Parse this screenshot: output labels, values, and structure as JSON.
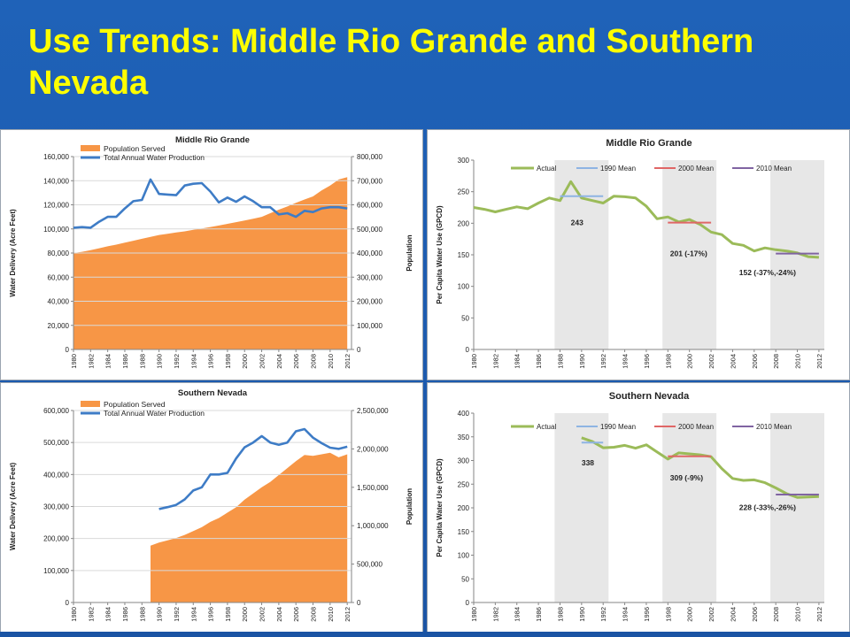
{
  "title": "Use Trends:  Middle Rio Grande and Southern Nevada",
  "colors": {
    "population": "#f79646",
    "production": "#3e7cc6",
    "actual": "#9bbb59",
    "mean1990": "#8eb4e3",
    "mean2000": "#e06666",
    "mean2010": "#8064a2",
    "shade": "#e7e7e7"
  },
  "chart_data": [
    {
      "id": "mrg-delivery",
      "type": "area",
      "title": "Middle Rio Grande",
      "ylabel": "Water Delivery  (Acre Feet)",
      "y2label": "Population",
      "ylim": [
        0,
        160000
      ],
      "y2lim": [
        0,
        800000
      ],
      "yticks": [
        "0",
        "20,000",
        "40,000",
        "60,000",
        "80,000",
        "100,000",
        "120,000",
        "140,000",
        "160,000"
      ],
      "y2ticks": [
        "0",
        "100,000",
        "200,000",
        "300,000",
        "400,000",
        "500,000",
        "600,000",
        "700,000",
        "800,000"
      ],
      "xticks": [
        "1980",
        "1982",
        "1984",
        "1986",
        "1988",
        "1990",
        "1992",
        "1994",
        "1996",
        "1998",
        "2000",
        "2002",
        "2004",
        "2006",
        "2008",
        "2010",
        "2012"
      ],
      "legend_position": "top-left",
      "series": [
        {
          "name": "Population Served",
          "kind": "area",
          "axis": "right",
          "x": [
            1980,
            1981,
            1982,
            1983,
            1984,
            1985,
            1986,
            1987,
            1988,
            1989,
            1990,
            1991,
            1992,
            1993,
            1994,
            1995,
            1996,
            1997,
            1998,
            1999,
            2000,
            2001,
            2002,
            2003,
            2004,
            2005,
            2006,
            2007,
            2008,
            2009,
            2010,
            2011,
            2012
          ],
          "values": [
            400000,
            405000,
            412000,
            420000,
            428000,
            435000,
            443000,
            451000,
            459000,
            467000,
            475000,
            480000,
            485000,
            490000,
            496000,
            502000,
            508000,
            514000,
            521000,
            528000,
            535000,
            542000,
            550000,
            565000,
            580000,
            593000,
            608000,
            622000,
            635000,
            660000,
            680000,
            705000,
            715000
          ]
        },
        {
          "name": "Total Annual Water Production",
          "kind": "line",
          "axis": "left",
          "x": [
            1980,
            1981,
            1982,
            1983,
            1984,
            1985,
            1986,
            1987,
            1988,
            1989,
            1990,
            1991,
            1992,
            1993,
            1994,
            1995,
            1996,
            1997,
            1998,
            1999,
            2000,
            2001,
            2002,
            2003,
            2004,
            2005,
            2006,
            2007,
            2008,
            2009,
            2010,
            2011,
            2012
          ],
          "values": [
            101000,
            101500,
            101000,
            106000,
            110000,
            110000,
            117000,
            123000,
            124000,
            141000,
            129000,
            128500,
            128000,
            136000,
            137500,
            138000,
            131000,
            122000,
            126000,
            122500,
            127000,
            123000,
            118000,
            118000,
            112000,
            113000,
            110000,
            115000,
            114000,
            117000,
            118000,
            118000,
            117000
          ]
        }
      ]
    },
    {
      "id": "mrg-gpcd",
      "type": "line",
      "title": "Middle Rio Grande",
      "ylabel": "Per Capita Water Use (GPCD)",
      "ylim": [
        0,
        300
      ],
      "yticks": [
        "0",
        "50",
        "100",
        "150",
        "200",
        "250",
        "300"
      ],
      "xticks": [
        "1980",
        "1982",
        "1984",
        "1986",
        "1988",
        "1990",
        "1992",
        "1994",
        "1996",
        "1998",
        "2000",
        "2002",
        "2004",
        "2006",
        "2008",
        "2010",
        "2012"
      ],
      "legend_position": "top",
      "series": [
        {
          "name": "Actual",
          "x": [
            1980,
            1981,
            1982,
            1983,
            1984,
            1985,
            1986,
            1987,
            1988,
            1989,
            1990,
            1991,
            1992,
            1993,
            1994,
            1995,
            1996,
            1997,
            1998,
            1999,
            2000,
            2001,
            2002,
            2003,
            2004,
            2005,
            2006,
            2007,
            2008,
            2009,
            2010,
            2011,
            2012
          ],
          "values": [
            225,
            222,
            218,
            222,
            226,
            223,
            232,
            240,
            236,
            266,
            240,
            236,
            232,
            243,
            242,
            240,
            227,
            207,
            210,
            202,
            206,
            198,
            186,
            182,
            168,
            165,
            156,
            161,
            158,
            156,
            153,
            147,
            146
          ]
        },
        {
          "name": "1990 Mean",
          "x": [
            1988,
            1992
          ],
          "values": [
            243,
            243
          ]
        },
        {
          "name": "2000 Mean",
          "x": [
            1998,
            2002
          ],
          "values": [
            201,
            201
          ]
        },
        {
          "name": "2010 Mean",
          "x": [
            2008,
            2012
          ],
          "values": [
            152,
            152
          ]
        }
      ],
      "shaded_ranges": [
        [
          1987.5,
          1992.5
        ],
        [
          1997.5,
          2002.5
        ],
        [
          2007.5,
          2012.5
        ]
      ],
      "annotations": [
        {
          "text": "243",
          "x": 1989,
          "y": 197
        },
        {
          "text": "201 (-17%)",
          "x": 1998.2,
          "y": 148
        },
        {
          "text": "152 (-37%,-24%)",
          "x": 2004.6,
          "y": 118
        }
      ]
    },
    {
      "id": "sn-delivery",
      "type": "area",
      "title": "Southern Nevada",
      "ylabel": "Water Delivery (Acre Feet)",
      "y2label": "Population",
      "ylim": [
        0,
        600000
      ],
      "y2lim": [
        0,
        2500000
      ],
      "yticks": [
        "0",
        "100,000",
        "200,000",
        "300,000",
        "400,000",
        "500,000",
        "600,000"
      ],
      "y2ticks": [
        "0",
        "500,000",
        "1,000,000",
        "1,500,000",
        "2,000,000",
        "2,500,000"
      ],
      "xticks": [
        "1980",
        "1982",
        "1984",
        "1986",
        "1988",
        "1990",
        "1992",
        "1994",
        "1996",
        "1998",
        "2000",
        "2002",
        "2004",
        "2006",
        "2008",
        "2010",
        "2012"
      ],
      "legend_position": "top-left",
      "series": [
        {
          "name": "Population Served",
          "kind": "area",
          "axis": "right",
          "x": [
            1989,
            1989,
            1990,
            1991,
            1992,
            1993,
            1994,
            1995,
            1996,
            1997,
            1998,
            1999,
            2000,
            2001,
            2002,
            2003,
            2004,
            2005,
            2006,
            2007,
            2008,
            2009,
            2010,
            2011,
            2012
          ],
          "values": [
            0,
            740000,
            780000,
            810000,
            840000,
            880000,
            930000,
            980000,
            1050000,
            1100000,
            1170000,
            1240000,
            1340000,
            1420000,
            1500000,
            1570000,
            1660000,
            1750000,
            1840000,
            1920000,
            1910000,
            1930000,
            1950000,
            1890000,
            1930000
          ]
        },
        {
          "name": "Total Annual Water Production",
          "kind": "line",
          "axis": "left",
          "x": [
            1990,
            1991,
            1992,
            1993,
            1994,
            1995,
            1996,
            1997,
            1998,
            1999,
            2000,
            2001,
            2002,
            2003,
            2004,
            2005,
            2006,
            2007,
            2008,
            2009,
            2010,
            2011,
            2012
          ],
          "values": [
            292000,
            298000,
            305000,
            322000,
            350000,
            360000,
            400000,
            400000,
            405000,
            450000,
            485000,
            500000,
            520000,
            500000,
            493000,
            500000,
            535000,
            542000,
            515000,
            498000,
            484000,
            480000,
            487000
          ]
        }
      ]
    },
    {
      "id": "sn-gpcd",
      "type": "line",
      "title": "Southern Nevada",
      "ylabel": "Per Capita Water Use (GPCD)",
      "ylim": [
        0,
        400
      ],
      "yticks": [
        "0",
        "50",
        "100",
        "150",
        "200",
        "250",
        "300",
        "350",
        "400"
      ],
      "xticks": [
        "1980",
        "1982",
        "1984",
        "1986",
        "1988",
        "1990",
        "1992",
        "1994",
        "1996",
        "1998",
        "2000",
        "2002",
        "2004",
        "2006",
        "2008",
        "2010",
        "2012"
      ],
      "legend_position": "top",
      "series": [
        {
          "name": "Actual",
          "x": [
            1990,
            1991,
            1992,
            1993,
            1994,
            1995,
            1996,
            1997,
            1998,
            1999,
            2000,
            2001,
            2002,
            2003,
            2004,
            2005,
            2006,
            2007,
            2008,
            2009,
            2010,
            2011,
            2012
          ],
          "values": [
            348,
            340,
            327,
            328,
            332,
            326,
            333,
            318,
            303,
            316,
            314,
            312,
            308,
            283,
            262,
            258,
            259,
            253,
            242,
            230,
            222,
            223,
            224
          ]
        },
        {
          "name": "1990 Mean",
          "x": [
            1990,
            1992
          ],
          "values": [
            338,
            338
          ]
        },
        {
          "name": "2000 Mean",
          "x": [
            1998,
            2002
          ],
          "values": [
            309,
            309
          ]
        },
        {
          "name": "2010 Mean",
          "x": [
            2008,
            2012
          ],
          "values": [
            228,
            228
          ]
        }
      ],
      "shaded_ranges": [
        [
          1987.5,
          1992.5
        ],
        [
          1997.5,
          2002.5
        ],
        [
          2007.5,
          2012.5
        ]
      ],
      "annotations": [
        {
          "text": "338",
          "x": 1990,
          "y": 290
        },
        {
          "text": "309 (-9%)",
          "x": 1998.2,
          "y": 258
        },
        {
          "text": "228 (-33%,-26%)",
          "x": 2004.6,
          "y": 195
        }
      ]
    }
  ]
}
